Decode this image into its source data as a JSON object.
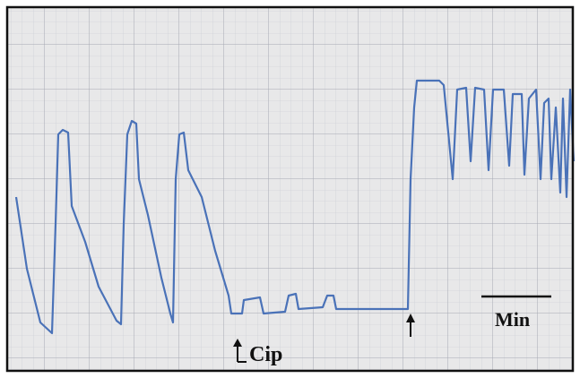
{
  "labels": {
    "drug": "Cip",
    "time_scale": "Min"
  }
}
